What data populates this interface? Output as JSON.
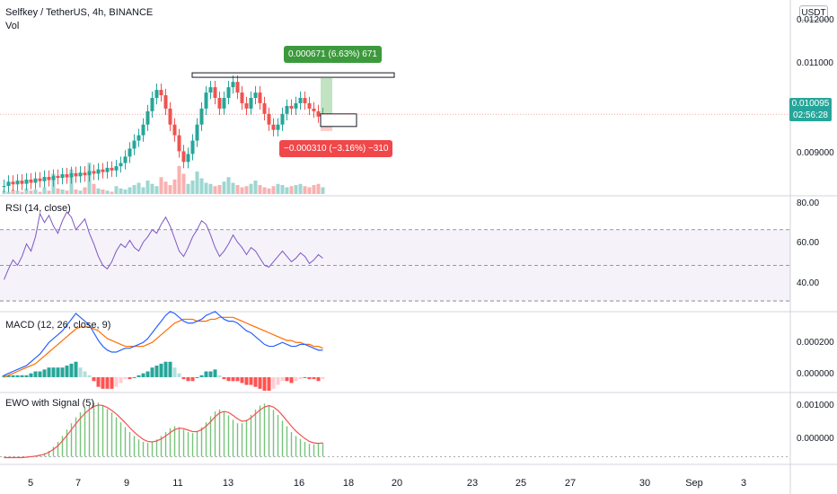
{
  "header": {
    "symbol_line": "Selfkey / TetherUS, 4h, BINANCE",
    "volume_label": "Vol"
  },
  "currency": "USDT",
  "price_panel": {
    "y_labels": [
      "0.012000",
      "0.011000",
      "0.010000",
      "0.009000"
    ],
    "last_price": "0.010095",
    "countdown": "02:56:28",
    "measure_up": "0.000671 (6.63%) 671",
    "measure_down": "−0.000310 (−3.16%) −310"
  },
  "rsi": {
    "title": "RSI (14, close)",
    "y_labels": [
      "80.00",
      "60.00",
      "40.00"
    ],
    "upper": 70,
    "mid": 50,
    "lower": 30
  },
  "macd": {
    "title": "MACD (12, 26, close, 9)",
    "y_labels": [
      "0.000200",
      "0.000000"
    ]
  },
  "ewo": {
    "title": "EWO with Signal (5)",
    "y_labels": [
      "0.001000",
      "0.000000"
    ]
  },
  "x_axis": [
    "5",
    "7",
    "9",
    "11",
    "13",
    "16",
    "18",
    "20",
    "23",
    "25",
    "27",
    "30",
    "Sep",
    "3"
  ],
  "colors": {
    "up": "#26a69a",
    "down": "#ef5350",
    "rsi_line": "#7e57c2",
    "macd_line": "#2962ff",
    "signal_line": "#ff6d00",
    "ewo_bar": "#4caf50",
    "ewo_signal": "#ef5350"
  },
  "chart_data": [
    {
      "type": "candlestick",
      "title": "Selfkey / TetherUS, 4h, BINANCE",
      "ylim": [
        0.0087,
        0.0121
      ],
      "close": [
        0.00875,
        0.00883,
        0.00878,
        0.00885,
        0.00879,
        0.00887,
        0.00881,
        0.00889,
        0.00884,
        0.00892,
        0.00886,
        0.00894,
        0.0089,
        0.00897,
        0.00891,
        0.00899,
        0.00893,
        0.009,
        0.00895,
        0.00903,
        0.00898,
        0.00906,
        0.00901,
        0.00909,
        0.00904,
        0.00912,
        0.00918,
        0.0093,
        0.00945,
        0.0096,
        0.0097,
        0.0099,
        0.01015,
        0.0104,
        0.01055,
        0.01045,
        0.0102,
        0.0099,
        0.0097,
        0.0094,
        0.0092,
        0.00935,
        0.0096,
        0.0099,
        0.0102,
        0.0105,
        0.0106,
        0.0104,
        0.0102,
        0.0104,
        0.0106,
        0.0107,
        0.0105,
        0.0103,
        0.0102,
        0.0104,
        0.0105,
        0.0103,
        0.0101,
        0.0099,
        0.0098,
        0.0099,
        0.0101,
        0.01025,
        0.0102,
        0.0103,
        0.0104,
        0.0103,
        0.0102,
        0.01015,
        0.01005,
        0.010095
      ],
      "volume": [
        3,
        2,
        4,
        3,
        2,
        5,
        3,
        4,
        2,
        6,
        3,
        18,
        5,
        4,
        3,
        22,
        4,
        3,
        6,
        28,
        9,
        5,
        4,
        3,
        2,
        7,
        5,
        4,
        6,
        8,
        10,
        6,
        12,
        9,
        7,
        15,
        11,
        8,
        13,
        25,
        18,
        9,
        12,
        20,
        14,
        10,
        9,
        7,
        8,
        11,
        15,
        10,
        8,
        6,
        7,
        9,
        12,
        8,
        6,
        5,
        7,
        9,
        8,
        6,
        7,
        8,
        9,
        7,
        6,
        8,
        9,
        6
      ]
    },
    {
      "type": "line",
      "title": "RSI (14, close)",
      "ylim": [
        25,
        88
      ],
      "values": [
        42,
        48,
        53,
        50,
        55,
        62,
        58,
        66,
        79,
        74,
        78,
        72,
        68,
        75,
        80,
        77,
        70,
        73,
        76,
        68,
        62,
        55,
        50,
        48,
        52,
        58,
        62,
        60,
        64,
        60,
        58,
        63,
        66,
        70,
        68,
        73,
        77,
        72,
        65,
        58,
        55,
        60,
        66,
        70,
        75,
        73,
        67,
        60,
        55,
        58,
        62,
        67,
        63,
        60,
        56,
        60,
        58,
        54,
        50,
        49,
        52,
        55,
        58,
        55,
        52,
        54,
        57,
        55,
        51,
        53,
        56,
        54
      ]
    },
    {
      "type": "line",
      "title": "MACD (12, 26, close, 9)",
      "ylim": [
        -7e-05,
        0.00033
      ],
      "series": [
        {
          "values": [
            1e-05,
            2e-05,
            3e-05,
            4e-05,
            5e-05,
            6e-05,
            8e-05,
            0.0001,
            0.00012,
            0.00015,
            0.00018,
            0.0002,
            0.00022,
            0.00024,
            0.00027,
            0.0003,
            0.00033,
            0.00031,
            0.00029,
            0.00027,
            0.00023,
            0.00019,
            0.00016,
            0.00014,
            0.00013,
            0.00013,
            0.00014,
            0.00015,
            0.00015,
            0.00016,
            0.00017,
            0.00018,
            0.0002,
            0.00023,
            0.00026,
            0.00029,
            0.00032,
            0.00034,
            0.00033,
            0.00031,
            0.00029,
            0.00028,
            0.00028,
            0.00029,
            0.0003,
            0.00032,
            0.00033,
            0.00034,
            0.00032,
            0.0003,
            0.00029,
            0.00029,
            0.00028,
            0.00026,
            0.00024,
            0.00023,
            0.00021,
            0.00019,
            0.00017,
            0.00016,
            0.00016,
            0.00017,
            0.00018,
            0.00017,
            0.00016,
            0.00016,
            0.00017,
            0.00017,
            0.00016,
            0.00015,
            0.00014,
            0.00014
          ]
        },
        {
          "values": [
            0.0,
            1e-05,
            2e-05,
            3e-05,
            4e-05,
            5e-05,
            6e-05,
            7e-05,
            9e-05,
            0.00011,
            0.00013,
            0.00015,
            0.00017,
            0.00019,
            0.00021,
            0.00023,
            0.00025,
            0.00026,
            0.00026,
            0.00026,
            0.00025,
            0.00024,
            0.00022,
            0.0002,
            0.00019,
            0.00018,
            0.00017,
            0.00016,
            0.00016,
            0.00016,
            0.00016,
            0.00016,
            0.00017,
            0.00018,
            0.0002,
            0.00022,
            0.00024,
            0.00026,
            0.00028,
            0.00029,
            0.0003,
            0.0003,
            0.0003,
            0.00029,
            0.00029,
            0.00029,
            0.0003,
            0.0003,
            0.00031,
            0.00031,
            0.00031,
            0.00031,
            0.0003,
            0.00029,
            0.00028,
            0.00027,
            0.00026,
            0.00025,
            0.00024,
            0.00023,
            0.00022,
            0.00021,
            0.0002,
            0.00019,
            0.00019,
            0.00018,
            0.00018,
            0.00017,
            0.00017,
            0.00016,
            0.00016,
            0.00015
          ]
        },
        {
          "values": [
            1e-05,
            1e-05,
            1e-05,
            1e-05,
            1e-05,
            1e-05,
            2e-05,
            3e-05,
            3e-05,
            4e-05,
            5e-05,
            5e-05,
            5e-05,
            5e-05,
            6e-05,
            7e-05,
            8e-05,
            5e-05,
            3e-05,
            1e-05,
            -2e-05,
            -5e-05,
            -6e-05,
            -6e-05,
            -6e-05,
            -5e-05,
            -3e-05,
            -1e-05,
            -1e-05,
            0.0,
            1e-05,
            2e-05,
            3e-05,
            5e-05,
            6e-05,
            7e-05,
            8e-05,
            8e-05,
            5e-05,
            2e-05,
            -1e-05,
            -2e-05,
            -2e-05,
            0.0,
            1e-05,
            3e-05,
            3e-05,
            4e-05,
            1e-05,
            -1e-05,
            -2e-05,
            -2e-05,
            -2e-05,
            -3e-05,
            -4e-05,
            -4e-05,
            -5e-05,
            -6e-05,
            -7e-05,
            -7e-05,
            -6e-05,
            -4e-05,
            -2e-05,
            -2e-05,
            -3e-05,
            -2e-05,
            -1e-05,
            0.0,
            -1e-05,
            -1e-05,
            -2e-05,
            -1e-05
          ]
        }
      ]
    },
    {
      "type": "bar",
      "title": "EWO with Signal (5)",
      "ylim": [
        -0.00012,
        0.00125
      ],
      "series": [
        {
          "values": [
            -2e-05,
            -3e-05,
            -3e-05,
            -2e-05,
            -2e-05,
            -1e-05,
            0.0,
            2e-05,
            4e-05,
            7e-05,
            0.00012,
            0.0002,
            0.0003,
            0.00042,
            0.00055,
            0.00068,
            0.0008,
            0.0009,
            0.00098,
            0.00105,
            0.0011,
            0.0011,
            0.00104,
            0.00097,
            0.0009,
            0.0008,
            0.0007,
            0.0006,
            0.0005,
            0.00042,
            0.00035,
            0.0003,
            0.00028,
            0.0003,
            0.00035,
            0.00042,
            0.0005,
            0.00058,
            0.00062,
            0.0006,
            0.00055,
            0.0005,
            0.00048,
            0.00052,
            0.0006,
            0.0007,
            0.00082,
            0.00092,
            0.00096,
            0.00092,
            0.00084,
            0.00075,
            0.00068,
            0.00068,
            0.00075,
            0.00085,
            0.00096,
            0.00104,
            0.00108,
            0.00105,
            0.00095,
            0.00085,
            0.00073,
            0.00062,
            0.0005,
            0.00042,
            0.00036,
            0.0003,
            0.00026,
            0.00025,
            0.00027,
            0.00028
          ]
        },
        {
          "values": [
            -2e-05,
            -2e-05,
            -2e-05,
            -2e-05,
            -2e-05,
            -1e-05,
            0.0,
            1e-05,
            3e-05,
            5e-05,
            9e-05,
            0.00015,
            0.00022,
            0.00032,
            0.00043,
            0.00055,
            0.00067,
            0.00078,
            0.00088,
            0.00096,
            0.00102,
            0.00105,
            0.00104,
            0.001,
            0.00094,
            0.00087,
            0.00078,
            0.00069,
            0.00059,
            0.0005,
            0.00042,
            0.00035,
            0.00031,
            0.0003,
            0.00032,
            0.00036,
            0.00042,
            0.00049,
            0.00055,
            0.00058,
            0.00057,
            0.00054,
            0.00051,
            0.00051,
            0.00055,
            0.00062,
            0.00071,
            0.00081,
            0.00089,
            0.00092,
            0.0009,
            0.00084,
            0.00077,
            0.00072,
            0.00073,
            0.00079,
            0.00087,
            0.00095,
            0.00101,
            0.00104,
            0.00101,
            0.00094,
            0.00084,
            0.00073,
            0.00062,
            0.00052,
            0.00044,
            0.00037,
            0.00031,
            0.00028,
            0.00027,
            0.00028
          ]
        }
      ]
    }
  ]
}
